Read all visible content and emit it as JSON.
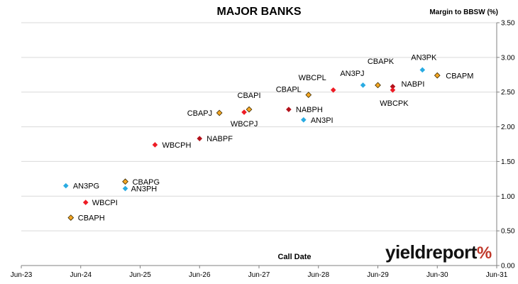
{
  "chart_data": {
    "type": "scatter",
    "title": "MAJOR BANKS",
    "xlabel": "Call Date",
    "ylabel": "Margin to BBSW (%)",
    "xlim": [
      "2023-06",
      "2031-06"
    ],
    "ylim": [
      0.0,
      3.5
    ],
    "x_ticks": [
      "Jun-23",
      "Jun-24",
      "Jun-25",
      "Jun-26",
      "Jun-27",
      "Jun-28",
      "Jun-29",
      "Jun-30",
      "Jun-31"
    ],
    "y_ticks": [
      "0.00",
      "0.50",
      "1.00",
      "1.50",
      "2.00",
      "2.50",
      "3.00",
      "3.50"
    ],
    "grid": "horizontal",
    "colors": {
      "ANZ": "#29abe2",
      "CBA": "#f5a623",
      "NAB": "#b3121b",
      "WBC": "#ee1c25"
    },
    "points": [
      {
        "label": "AN3PG",
        "issuer": "ANZ",
        "x": "2024-03",
        "y": 1.15
      },
      {
        "label": "CBAPH",
        "issuer": "CBA",
        "x": "2024-04",
        "y": 0.69
      },
      {
        "label": "WBCPI",
        "issuer": "WBC",
        "x": "2024-07",
        "y": 0.91
      },
      {
        "label": "AN3PH",
        "issuer": "ANZ",
        "x": "2025-03",
        "y": 1.11
      },
      {
        "label": "CBAPG",
        "issuer": "CBA",
        "x": "2025-03",
        "y": 1.21
      },
      {
        "label": "WBCPH",
        "issuer": "WBC",
        "x": "2025-09",
        "y": 1.74
      },
      {
        "label": "NABPF",
        "issuer": "NAB",
        "x": "2026-06",
        "y": 1.83
      },
      {
        "label": "CBAPJ",
        "issuer": "CBA",
        "x": "2026-10",
        "y": 2.2
      },
      {
        "label": "WBCPJ",
        "issuer": "WBC",
        "x": "2027-03",
        "y": 2.21
      },
      {
        "label": "CBAPI",
        "issuer": "CBA",
        "x": "2027-04",
        "y": 2.25
      },
      {
        "label": "NABPH",
        "issuer": "NAB",
        "x": "2027-12",
        "y": 2.25
      },
      {
        "label": "CBAPL",
        "issuer": "CBA",
        "x": "2028-04",
        "y": 2.46
      },
      {
        "label": "AN3PI",
        "issuer": "ANZ",
        "x": "2028-03",
        "y": 2.1
      },
      {
        "label": "WBCPL",
        "issuer": "WBC",
        "x": "2028-09",
        "y": 2.53
      },
      {
        "label": "AN3PJ",
        "issuer": "ANZ",
        "x": "2029-03",
        "y": 2.6
      },
      {
        "label": "CBAPK",
        "issuer": "CBA",
        "x": "2029-06",
        "y": 2.6
      },
      {
        "label": "NABPI",
        "issuer": "NAB",
        "x": "2029-09",
        "y": 2.58
      },
      {
        "label": "WBCPK",
        "issuer": "WBC",
        "x": "2029-09",
        "y": 2.53
      },
      {
        "label": "AN3PK",
        "issuer": "ANZ",
        "x": "2030-03",
        "y": 2.82
      },
      {
        "label": "CBAPM",
        "issuer": "CBA",
        "x": "2030-06",
        "y": 2.74
      }
    ]
  },
  "brand": {
    "name": "yieldreport",
    "symbol": "%"
  }
}
